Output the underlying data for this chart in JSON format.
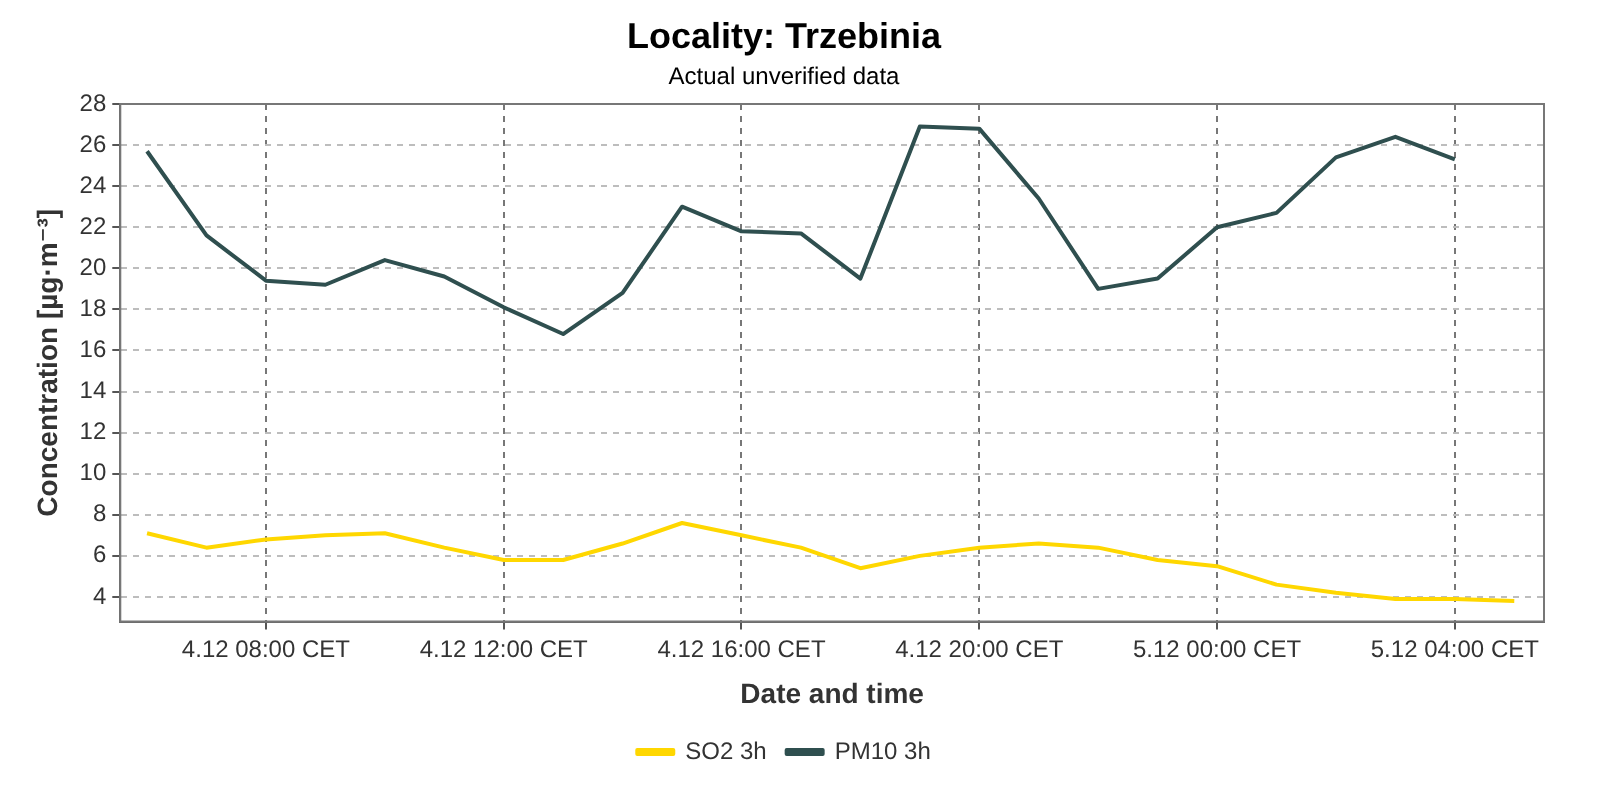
{
  "chart_data": {
    "type": "line",
    "title": "Locality: Trzebinia",
    "subtitle": "Actual unverified data",
    "xlabel": "Date and time",
    "ylabel": "Concentration [µg·m⁻³]",
    "categories": [
      null,
      null,
      "4.12 08:00 CET",
      null,
      null,
      null,
      "4.12 12:00 CET",
      null,
      null,
      null,
      "4.12 16:00 CET",
      null,
      null,
      null,
      "4.12 20:00 CET",
      null,
      null,
      null,
      "5.12 00:00 CET",
      null,
      null,
      null,
      "5.12 04:00 CET",
      null
    ],
    "series": [
      {
        "name": "SO2 3h",
        "color": "#ffd700",
        "values": [
          7.1,
          6.4,
          6.8,
          7.0,
          7.1,
          6.4,
          5.8,
          5.8,
          6.6,
          7.6,
          7.0,
          6.4,
          5.4,
          6.0,
          6.4,
          6.6,
          6.4,
          5.8,
          5.5,
          4.6,
          4.2,
          3.9,
          3.9,
          3.8
        ]
      },
      {
        "name": "PM10 3h",
        "color": "#2f4f4f",
        "values": [
          25.7,
          21.6,
          19.4,
          19.2,
          20.4,
          19.6,
          18.1,
          16.8,
          18.8,
          23.0,
          21.8,
          21.7,
          19.5,
          26.9,
          26.8,
          23.4,
          19.0,
          19.5,
          22.0,
          22.7,
          25.4,
          26.4,
          25.3,
          null
        ]
      }
    ],
    "ylim": [
      2.8,
      28
    ],
    "yticks": [
      4,
      6,
      8,
      10,
      12,
      14,
      16,
      18,
      20,
      22,
      24,
      26,
      28
    ],
    "grid": true,
    "legend": "bottom",
    "marker": "none",
    "line_style": "solid"
  }
}
